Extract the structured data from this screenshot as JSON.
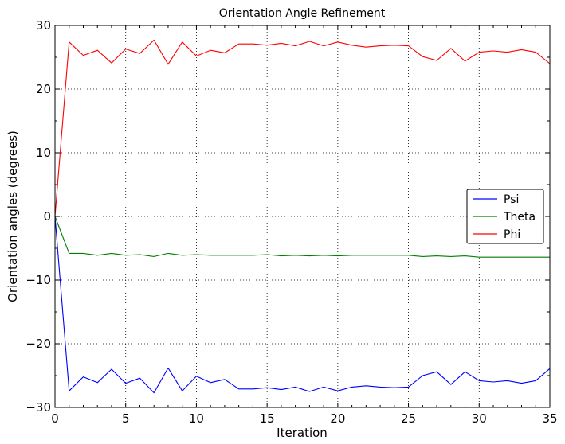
{
  "chart_data": {
    "type": "line",
    "title": "Orientation Angle Refinement",
    "xlabel": "Iteration",
    "ylabel": "Orientation angles (degrees)",
    "xlim": [
      0,
      35
    ],
    "ylim": [
      -30,
      30
    ],
    "xticks": [
      0,
      5,
      10,
      15,
      20,
      25,
      30,
      35
    ],
    "yticks": [
      -30,
      -20,
      -10,
      0,
      10,
      20,
      30
    ],
    "xtick_labels": [
      "0",
      "5",
      "10",
      "15",
      "20",
      "25",
      "30",
      "35"
    ],
    "ytick_labels": [
      "−30",
      "−20",
      "−10",
      "0",
      "10",
      "20",
      "30"
    ],
    "grid": true,
    "grid_style": "dotted",
    "legend_position": "center-right",
    "x": [
      0,
      1,
      2,
      3,
      4,
      5,
      6,
      7,
      8,
      9,
      10,
      11,
      12,
      13,
      14,
      15,
      16,
      17,
      18,
      19,
      20,
      21,
      22,
      23,
      24,
      25,
      26,
      27,
      28,
      29,
      30,
      31,
      32,
      33,
      34,
      35
    ],
    "series": [
      {
        "name": "Psi",
        "color": "#0000ff",
        "values": [
          0,
          -27.4,
          -25.2,
          -26.1,
          -24.0,
          -26.2,
          -25.4,
          -27.7,
          -23.8,
          -27.4,
          -25.1,
          -26.1,
          -25.6,
          -27.1,
          -27.1,
          -26.9,
          -27.2,
          -26.8,
          -27.5,
          -26.8,
          -27.4,
          -26.8,
          -26.6,
          -26.8,
          -26.9,
          -26.8,
          -25.0,
          -24.4,
          -26.4,
          -24.4,
          -25.8,
          -26.0,
          -25.8,
          -26.2,
          -25.8,
          -23.9
        ]
      },
      {
        "name": "Theta",
        "color": "#008000",
        "values": [
          0,
          -5.8,
          -5.8,
          -6.1,
          -5.8,
          -6.1,
          -6.0,
          -6.3,
          -5.8,
          -6.1,
          -6.0,
          -6.1,
          -6.1,
          -6.1,
          -6.1,
          -6.0,
          -6.2,
          -6.1,
          -6.2,
          -6.1,
          -6.2,
          -6.1,
          -6.1,
          -6.1,
          -6.1,
          -6.1,
          -6.3,
          -6.2,
          -6.3,
          -6.2,
          -6.4,
          -6.4,
          -6.4,
          -6.4,
          -6.4,
          -6.4
        ]
      },
      {
        "name": "Phi",
        "color": "#ff0000",
        "values": [
          0,
          27.4,
          25.3,
          26.1,
          24.1,
          26.3,
          25.6,
          27.7,
          23.9,
          27.4,
          25.2,
          26.1,
          25.7,
          27.1,
          27.1,
          26.9,
          27.2,
          26.8,
          27.5,
          26.8,
          27.4,
          26.9,
          26.6,
          26.8,
          26.9,
          26.8,
          25.1,
          24.5,
          26.4,
          24.4,
          25.8,
          26.0,
          25.8,
          26.2,
          25.8,
          24.0
        ]
      }
    ]
  }
}
